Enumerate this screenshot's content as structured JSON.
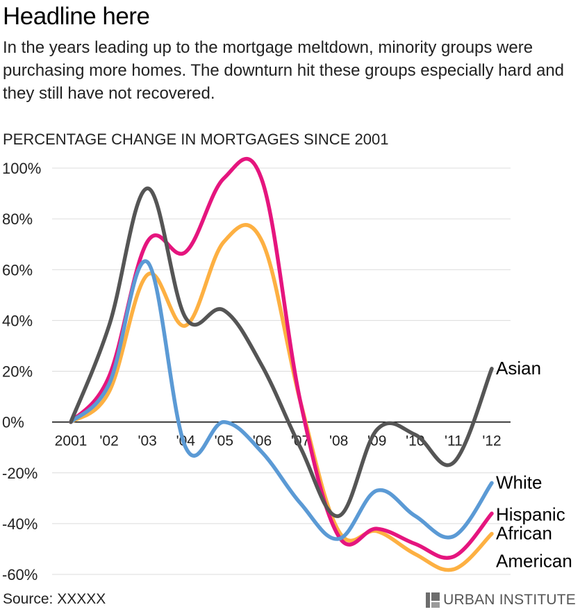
{
  "headline": "Headline here",
  "subtitle": "In the years leading up to the mortgage meltdown, minority groups were purchasing more homes. The downturn hit these groups especially hard and they still have not recovered.",
  "source": "Source: XXXXX",
  "brand": {
    "name": "URBAN INSTITUTE",
    "icon": "urban-institute-logo-icon"
  },
  "chart_data": {
    "type": "line",
    "title": "PERCENTAGE CHANGE IN MORTGAGES SINCE 2001",
    "categories": [
      "2001",
      "'02",
      "'03",
      "'04",
      "'05",
      "'06",
      "'07",
      "'08",
      "'09",
      "'10",
      "'11",
      "'12"
    ],
    "ylim": [
      -60,
      100
    ],
    "yticks": [
      100,
      80,
      60,
      40,
      20,
      0,
      -20,
      -40,
      -60
    ],
    "ytick_labels": [
      "100%",
      "80%",
      "60%",
      "40%",
      "20%",
      "0%",
      "-20%",
      "-40%",
      "-60%"
    ],
    "grid": true,
    "series": [
      {
        "name": "Asian",
        "color": "#555555",
        "values": [
          0,
          38,
          92,
          41,
          44,
          22,
          -10,
          -37,
          -3,
          -5,
          -16,
          21
        ]
      },
      {
        "name": "Hispanic",
        "color": "#e5157e",
        "values": [
          0,
          18,
          71,
          67,
          96,
          95,
          8,
          -45,
          -42,
          -48,
          -53,
          -36
        ]
      },
      {
        "name": "African American",
        "label_lines": [
          "African",
          "American"
        ],
        "color": "#fdb042",
        "values": [
          0,
          12,
          58,
          38,
          71,
          71,
          8,
          -43,
          -43,
          -52,
          -58,
          -44
        ]
      },
      {
        "name": "White",
        "color": "#5b9ad5",
        "values": [
          0,
          15,
          63,
          -10,
          0,
          -12,
          -32,
          -46,
          -27,
          -37,
          -45,
          -24
        ]
      }
    ]
  }
}
